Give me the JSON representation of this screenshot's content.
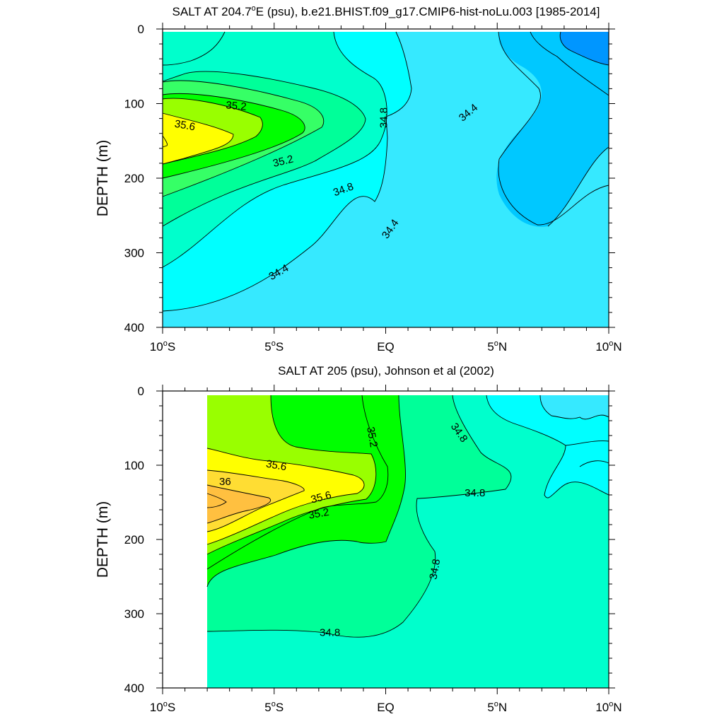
{
  "colors": {
    "lt_34_0": "#0096ff",
    "c34_0_34_2": "#00c8ff",
    "c34_2_34_4": "#36e9ff",
    "c34_4_34_6": "#00ffff",
    "c34_6_34_8": "#00ffcc",
    "c34_8_35_0": "#00ff99",
    "c35_0_35_2": "#36ff66",
    "c35_2_35_4": "#00ff00",
    "c35_4_35_6": "#99ff00",
    "c35_6_35_8": "#ffff00",
    "c35_8_36_0": "#ffdd33",
    "c36_0_36_2": "#ffc040"
  },
  "chart_data": [
    {
      "type": "contour",
      "title": "SALT AT 204.7°E (psu), b.e21.BHIST.f09_g17.CMIP6-hist-noLu.003 [1985-2014]",
      "title_parts": [
        "SALT AT 204.7",
        "o",
        "E (psu), b.e21.BHIST.f09_g17.CMIP6-hist-noLu.003 [1985-2014]"
      ],
      "xlabel": "",
      "ylabel": "DEPTH (m)",
      "xlim": [
        -10,
        10
      ],
      "ylim": [
        0,
        400
      ],
      "y_inverted": true,
      "x_ticks": [
        {
          "value": -10,
          "label": "10",
          "deg": "o",
          "suffix": "S"
        },
        {
          "value": -5,
          "label": "5",
          "deg": "o",
          "suffix": "S"
        },
        {
          "value": 0,
          "label": "EQ",
          "deg": "",
          "suffix": ""
        },
        {
          "value": 5,
          "label": "5",
          "deg": "o",
          "suffix": "N"
        },
        {
          "value": 10,
          "label": "10",
          "deg": "o",
          "suffix": "N"
        }
      ],
      "y_ticks": [
        {
          "value": 0,
          "label": "0"
        },
        {
          "value": 100,
          "label": "100"
        },
        {
          "value": 200,
          "label": "200"
        },
        {
          "value": 300,
          "label": "300"
        },
        {
          "value": 400,
          "label": "400"
        }
      ],
      "contour_labels": [
        {
          "text": "35.2",
          "x": -6.7,
          "y": 103,
          "angle": 5
        },
        {
          "text": "35.6",
          "x": -9.0,
          "y": 129,
          "angle": 10
        },
        {
          "text": "35.2",
          "x": -4.6,
          "y": 177,
          "angle": -14
        },
        {
          "text": "34.8",
          "x": -1.9,
          "y": 215,
          "angle": -20
        },
        {
          "text": "34.8",
          "x": -0.1,
          "y": 119,
          "angle": -90
        },
        {
          "text": "34.4",
          "x": 3.7,
          "y": 112,
          "angle": -40
        },
        {
          "text": "34.4",
          "x": 0.2,
          "y": 268,
          "angle": -55
        },
        {
          "text": "34.4",
          "x": -4.8,
          "y": 326,
          "angle": -30
        }
      ]
    },
    {
      "type": "contour",
      "title": "SALT AT 205 (psu), Johnson et al (2002)",
      "xlabel": "",
      "ylabel": "DEPTH (m)",
      "xlim": [
        -10,
        10
      ],
      "ylim": [
        0,
        400
      ],
      "y_inverted": true,
      "data_xrange": [
        -8,
        10
      ],
      "x_ticks": [
        {
          "value": -10,
          "label": "10",
          "deg": "o",
          "suffix": "S"
        },
        {
          "value": -5,
          "label": "5",
          "deg": "o",
          "suffix": "S"
        },
        {
          "value": 0,
          "label": "EQ",
          "deg": "",
          "suffix": ""
        },
        {
          "value": 5,
          "label": "5",
          "deg": "o",
          "suffix": "N"
        },
        {
          "value": 10,
          "label": "10",
          "deg": "o",
          "suffix": "N"
        }
      ],
      "y_ticks": [
        {
          "value": 0,
          "label": "0"
        },
        {
          "value": 100,
          "label": "100"
        },
        {
          "value": 200,
          "label": "200"
        },
        {
          "value": 300,
          "label": "300"
        },
        {
          "value": 400,
          "label": "400"
        }
      ],
      "contour_labels": [
        {
          "text": "35.2",
          "x": -0.6,
          "y": 62,
          "angle": 80
        },
        {
          "text": "34.8",
          "x": 3.3,
          "y": 56,
          "angle": 55
        },
        {
          "text": "35.6",
          "x": -4.9,
          "y": 100,
          "angle": 10
        },
        {
          "text": "36",
          "x": -7.2,
          "y": 122,
          "angle": 0
        },
        {
          "text": "35.6",
          "x": -2.9,
          "y": 143,
          "angle": -15
        },
        {
          "text": "35.2",
          "x": -3.0,
          "y": 165,
          "angle": -10
        },
        {
          "text": "34.8",
          "x": 4.0,
          "y": 137,
          "angle": 0
        },
        {
          "text": "34.8",
          "x": 2.2,
          "y": 240,
          "angle": -80
        },
        {
          "text": "34.8",
          "x": -2.5,
          "y": 325,
          "angle": 0
        }
      ]
    }
  ]
}
